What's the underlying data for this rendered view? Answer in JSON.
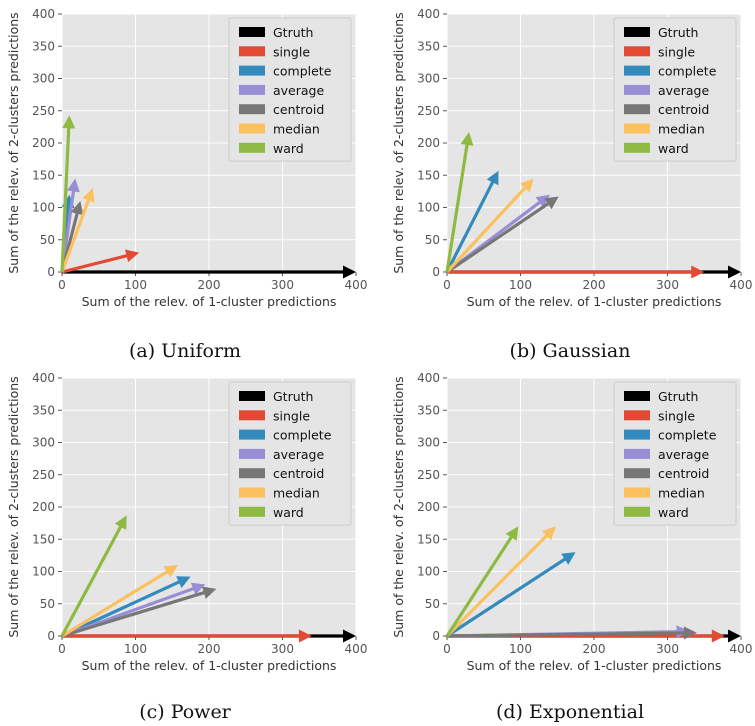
{
  "figure": {
    "colors": {
      "Gtruth": "#000000",
      "single": "#E24A33",
      "complete": "#348ABD",
      "average": "#988ED5",
      "centroid": "#777777",
      "median": "#FBC15E",
      "ward": "#8EBA42",
      "panel_bg": "#E5E5E5",
      "grid": "#FFFFFF"
    }
  },
  "chart_data": [
    {
      "type": "quiver",
      "caption": "(a) Uniform",
      "xlabel": "Sum of the relev. of 1-cluster predictions",
      "ylabel": "Sum of the relev. of 2-clusters predictions",
      "xlim": [
        0,
        400
      ],
      "ylim": [
        0,
        400
      ],
      "xticks": [
        "0",
        "100",
        "200",
        "300",
        "400"
      ],
      "yticks": [
        "0",
        "50",
        "100",
        "150",
        "200",
        "250",
        "300",
        "350",
        "400"
      ],
      "grid": true,
      "legend_position": "upper right",
      "series": [
        {
          "name": "Gtruth",
          "x": 400,
          "y": 0
        },
        {
          "name": "single",
          "x": 105,
          "y": 30
        },
        {
          "name": "complete",
          "x": 10,
          "y": 120
        },
        {
          "name": "average",
          "x": 18,
          "y": 145
        },
        {
          "name": "centroid",
          "x": 25,
          "y": 110
        },
        {
          "name": "median",
          "x": 42,
          "y": 130
        },
        {
          "name": "ward",
          "x": 10,
          "y": 243
        }
      ]
    },
    {
      "type": "quiver",
      "caption": "(b) Gaussian",
      "xlabel": "Sum of the relev. of 1-cluster predictions",
      "ylabel": "Sum of the relev. of 2-clusters predictions",
      "xlim": [
        0,
        400
      ],
      "ylim": [
        0,
        400
      ],
      "xticks": [
        "0",
        "100",
        "200",
        "300",
        "400"
      ],
      "yticks": [
        "0",
        "50",
        "100",
        "150",
        "200",
        "250",
        "300",
        "350",
        "400"
      ],
      "grid": true,
      "legend_position": "upper right",
      "series": [
        {
          "name": "Gtruth",
          "x": 400,
          "y": 0
        },
        {
          "name": "single",
          "x": 350,
          "y": 0
        },
        {
          "name": "complete",
          "x": 70,
          "y": 157
        },
        {
          "name": "average",
          "x": 140,
          "y": 120
        },
        {
          "name": "centroid",
          "x": 152,
          "y": 117
        },
        {
          "name": "median",
          "x": 118,
          "y": 145
        },
        {
          "name": "ward",
          "x": 30,
          "y": 217
        }
      ]
    },
    {
      "type": "quiver",
      "caption": "(c) Power",
      "xlabel": "Sum of the relev. of 1-cluster predictions",
      "ylabel": "Sum of the relev. of 2-clusters predictions",
      "xlim": [
        0,
        400
      ],
      "ylim": [
        0,
        400
      ],
      "xticks": [
        "0",
        "100",
        "200",
        "300",
        "400"
      ],
      "yticks": [
        "0",
        "50",
        "100",
        "150",
        "200",
        "250",
        "300",
        "350",
        "400"
      ],
      "grid": true,
      "legend_position": "upper right",
      "series": [
        {
          "name": "Gtruth",
          "x": 400,
          "y": 0
        },
        {
          "name": "single",
          "x": 340,
          "y": 0
        },
        {
          "name": "complete",
          "x": 175,
          "y": 92
        },
        {
          "name": "average",
          "x": 195,
          "y": 80
        },
        {
          "name": "centroid",
          "x": 210,
          "y": 73
        },
        {
          "name": "median",
          "x": 158,
          "y": 110
        },
        {
          "name": "ward",
          "x": 88,
          "y": 187
        }
      ]
    },
    {
      "type": "quiver",
      "caption": "(d) Exponential",
      "xlabel": "Sum of the relev. of 1-cluster predictions",
      "ylabel": "Sum of the relev. of 2-clusters predictions",
      "xlim": [
        0,
        400
      ],
      "ylim": [
        0,
        400
      ],
      "xticks": [
        "0",
        "100",
        "200",
        "300",
        "400"
      ],
      "yticks": [
        "0",
        "50",
        "100",
        "150",
        "200",
        "250",
        "300",
        "350",
        "400"
      ],
      "grid": true,
      "legend_position": "upper right",
      "series": [
        {
          "name": "Gtruth",
          "x": 400,
          "y": 0
        },
        {
          "name": "single",
          "x": 378,
          "y": 0
        },
        {
          "name": "complete",
          "x": 175,
          "y": 130
        },
        {
          "name": "average",
          "x": 330,
          "y": 7
        },
        {
          "name": "centroid",
          "x": 340,
          "y": 5
        },
        {
          "name": "median",
          "x": 148,
          "y": 170
        },
        {
          "name": "ward",
          "x": 97,
          "y": 170
        }
      ]
    }
  ]
}
